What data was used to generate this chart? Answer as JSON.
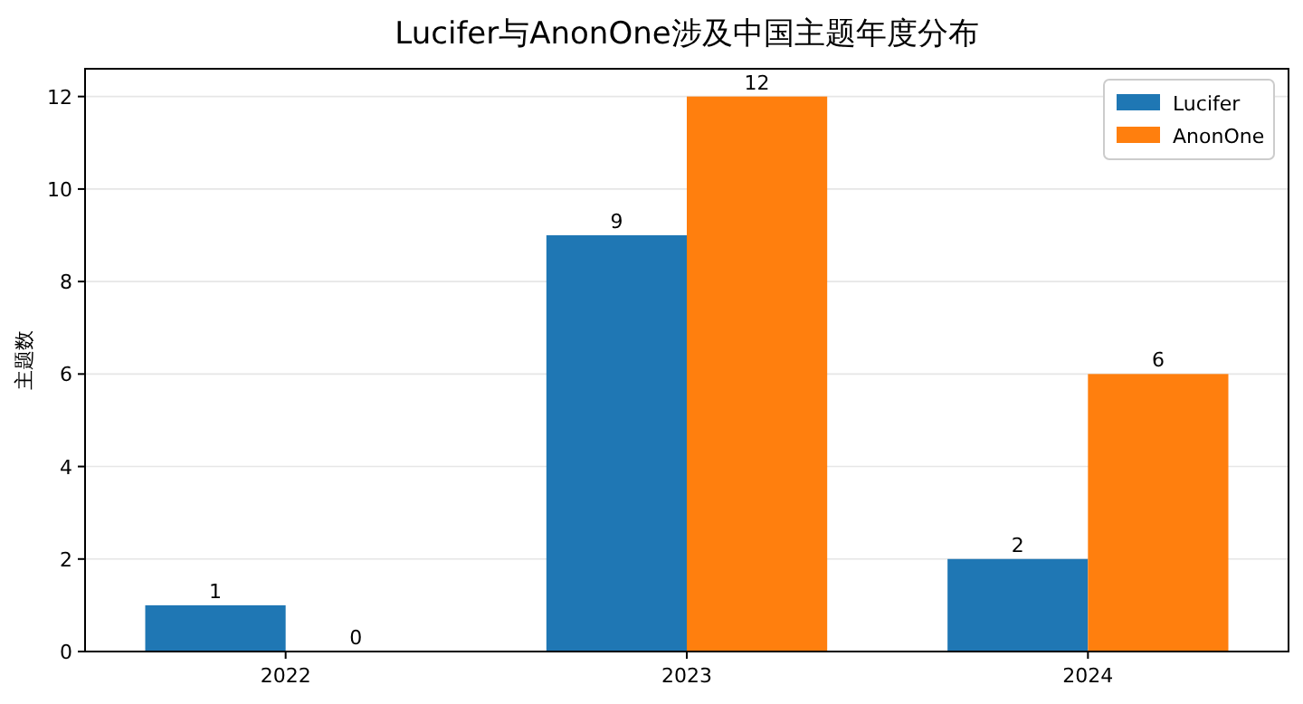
{
  "chart_data": {
    "type": "bar",
    "title": "Lucifer与AnonOne涉及中国主题年度分布",
    "ylabel": "主题数",
    "categories": [
      "2022",
      "2023",
      "2024"
    ],
    "series": [
      {
        "name": "Lucifer",
        "color": "#1f77b4",
        "values": [
          1,
          9,
          2
        ]
      },
      {
        "name": "AnonOne",
        "color": "#ff7f0e",
        "values": [
          0,
          12,
          6
        ]
      }
    ],
    "ylim": [
      0,
      12.6
    ],
    "yticks": [
      0,
      2,
      4,
      6,
      8,
      10,
      12
    ],
    "grid": "y",
    "legend": "top right",
    "data_labels": true
  }
}
